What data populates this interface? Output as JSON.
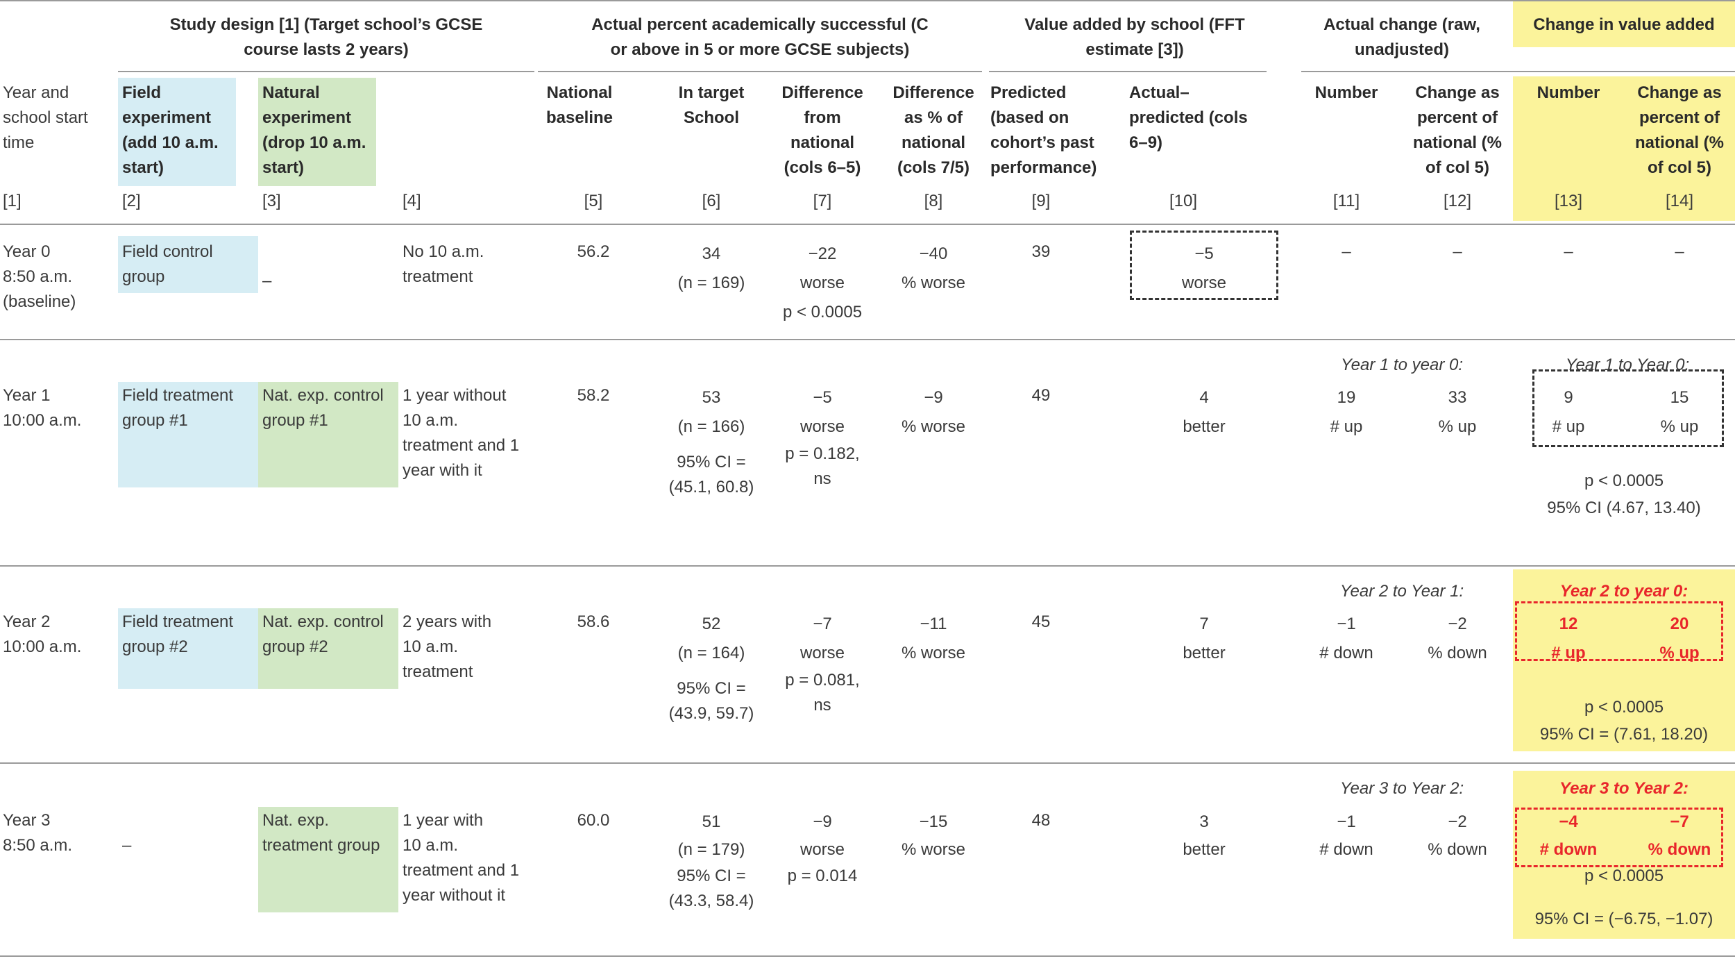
{
  "header_groups": {
    "study_design": [
      "Study design [1] (Target school’s GCSE",
      "course lasts 2 years)"
    ],
    "actual_percent": [
      "Actual percent academically successful (C",
      "or above in 5 or more GCSE subjects)"
    ],
    "value_added": [
      "Value added by school (FFT",
      "estimate [3])"
    ],
    "actual_change": [
      "Actual change (raw,",
      "unadjusted)"
    ],
    "change_value_added": "Change in value added"
  },
  "columns": {
    "c1": [
      "Year and",
      "school start",
      "time"
    ],
    "c2": [
      "Field",
      "experiment",
      "(add 10 a.m.",
      "start)"
    ],
    "c3": [
      "Natural",
      "experiment",
      "(drop 10 a.m.",
      "start)"
    ],
    "c5": [
      "National",
      "baseline"
    ],
    "c6": [
      "In target",
      "School"
    ],
    "c7": [
      "Difference",
      "from",
      "national",
      "(cols 6–5)"
    ],
    "c8": [
      "Difference",
      "as % of",
      "national",
      "(cols 7/5)"
    ],
    "c9": [
      "Predicted",
      "(based on",
      "cohort’s past",
      "performance)"
    ],
    "c10": [
      "Actual–",
      "predicted (cols",
      "6–9)"
    ],
    "c11": [
      "Number"
    ],
    "c12": [
      "Change as",
      "percent of",
      "national (%",
      "of col 5)"
    ],
    "c13": [
      "Number"
    ],
    "c14": [
      "Change as",
      "percent of",
      "national (%",
      "of col 5)"
    ]
  },
  "column_numbers": [
    "[1]",
    "[2]",
    "[3]",
    "[4]",
    "[5]",
    "[6]",
    "[7]",
    "[8]",
    "[9]",
    "[10]",
    "[11]",
    "[12]",
    "[13]",
    "[14]"
  ],
  "rows": [
    {
      "year": [
        "Year 0",
        "8:50 a.m.",
        "(baseline)"
      ],
      "field": [
        "Field control",
        "group"
      ],
      "natural": [
        "–"
      ],
      "treatment": [
        "No 10 a.m.",
        "treatment"
      ],
      "national": "56.2",
      "target": [
        "34",
        "(n = 169)"
      ],
      "diff": [
        "−22",
        "worse",
        "p < 0.0005"
      ],
      "diff_pct": [
        "−40",
        "% worse"
      ],
      "predicted": "39",
      "actual_pred": [
        "−5",
        "worse"
      ],
      "change_label": "",
      "change_num": [
        "–"
      ],
      "change_pct": [
        "–"
      ],
      "va_label": "",
      "va_num": [
        "–"
      ],
      "va_pct": [
        "–"
      ],
      "va_stats": []
    },
    {
      "year": [
        "Year 1",
        "10:00 a.m."
      ],
      "field": [
        "Field treatment",
        "group #1"
      ],
      "natural": [
        "Nat. exp. control",
        "group #1"
      ],
      "treatment": [
        "1 year without",
        "10 a.m.",
        "treatment and 1",
        "year with it"
      ],
      "national": "58.2",
      "target": [
        "53",
        "(n = 166)",
        "95% CI =",
        "(45.1, 60.8)"
      ],
      "diff": [
        "−5",
        "worse",
        "p = 0.182,",
        "ns"
      ],
      "diff_pct": [
        "−9",
        "% worse"
      ],
      "predicted": "49",
      "actual_pred": [
        "4",
        "better"
      ],
      "change_label": "Year 1 to year 0:",
      "change_num": [
        "19",
        "# up"
      ],
      "change_pct": [
        "33",
        "% up"
      ],
      "va_label": "Year 1 to Year 0:",
      "va_num": [
        "9",
        "# up"
      ],
      "va_pct": [
        "15",
        "% up"
      ],
      "va_stats": [
        "p < 0.0005",
        "95% CI (4.67, 13.40)"
      ]
    },
    {
      "year": [
        "Year 2",
        "10:00 a.m."
      ],
      "field": [
        "Field treatment",
        "group #2"
      ],
      "natural": [
        "Nat. exp. control",
        "group #2"
      ],
      "treatment": [
        "2 years with",
        "10 a.m.",
        "treatment"
      ],
      "national": "58.6",
      "target": [
        "52",
        "(n = 164)",
        "95% CI =",
        "(43.9, 59.7)"
      ],
      "diff": [
        "−7",
        "worse",
        "p = 0.081,",
        "ns"
      ],
      "diff_pct": [
        "−11",
        "% worse"
      ],
      "predicted": "45",
      "actual_pred": [
        "7",
        "better"
      ],
      "change_label": "Year 2 to Year 1:",
      "change_num": [
        "−1",
        "# down"
      ],
      "change_pct": [
        "−2",
        "% down"
      ],
      "va_label": "Year 2 to year 0:",
      "va_num": [
        "12",
        "# up"
      ],
      "va_pct": [
        "20",
        "% up"
      ],
      "va_stats": [
        "p < 0.0005",
        "95% CI = (7.61, 18.20)"
      ]
    },
    {
      "year": [
        "Year 3",
        "8:50 a.m."
      ],
      "field": [
        "–"
      ],
      "natural": [
        "Nat. exp.",
        "treatment group"
      ],
      "treatment": [
        "1 year with",
        "10 a.m.",
        "treatment and 1",
        "year without it"
      ],
      "national": "60.0",
      "target": [
        "51",
        "(n = 179)",
        "95% CI =",
        "(43.3, 58.4)"
      ],
      "diff": [
        "−9",
        "worse",
        "p = 0.014"
      ],
      "diff_pct": [
        "−15",
        "% worse"
      ],
      "predicted": "48",
      "actual_pred": [
        "3",
        "better"
      ],
      "change_label": "Year 3 to Year 2:",
      "change_num": [
        "−1",
        "# down"
      ],
      "change_pct": [
        "−2",
        "% down"
      ],
      "va_label": "Year 3 to Year 2:",
      "va_num": [
        "−4",
        "# down"
      ],
      "va_pct": [
        "−7",
        "% down"
      ],
      "va_stats": [
        "p < 0.0005",
        "95% CI = (−6.75, −1.07)"
      ]
    }
  ],
  "colors": {
    "field_fill": "#d6edf4",
    "natural_fill": "#d2e8c5",
    "highlight_fill": "#fbf39b",
    "accent_red": "#e8262b"
  }
}
